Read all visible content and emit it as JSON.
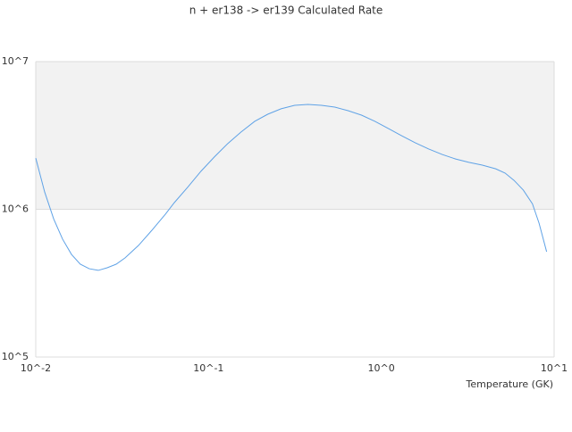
{
  "chart_data": {
    "type": "line",
    "title": "n + er138 -> er139 Calculated Rate",
    "x_label": "Temperature (GK)",
    "x": [
      0.01,
      0.01126,
      0.0127,
      0.0143,
      0.0161,
      0.0181,
      0.0204,
      0.023,
      0.0259,
      0.0292,
      0.0329,
      0.0393,
      0.047,
      0.0563,
      0.0634,
      0.0757,
      0.0904,
      0.108,
      0.129,
      0.154,
      0.185,
      0.22,
      0.263,
      0.315,
      0.376,
      0.45,
      0.538,
      0.642,
      0.768,
      0.918,
      1.1,
      1.31,
      1.57,
      1.88,
      2.25,
      2.69,
      3.21,
      3.84,
      4.59,
      5.2,
      5.86,
      6.63,
      7.49,
      8.18,
      9.05
    ],
    "series": [
      {
        "color": "#5fa2e6",
        "values": [
          2220000,
          1310000,
          860000,
          628000,
          495000,
          425000,
          396000,
          386000,
          402000,
          425000,
          469000,
          569000,
          721000,
          927000,
          1110000,
          1410000,
          1810000,
          2260000,
          2780000,
          3330000,
          3940000,
          4400000,
          4790000,
          5060000,
          5130000,
          5060000,
          4920000,
          4650000,
          4340000,
          3940000,
          3520000,
          3150000,
          2820000,
          2560000,
          2350000,
          2190000,
          2080000,
          1990000,
          1880000,
          1760000,
          1570000,
          1350000,
          1090000,
          806000,
          516000
        ]
      }
    ],
    "xscale": "log",
    "yscale": "log",
    "xlim": [
      0.01,
      10
    ],
    "ylim": [
      100000,
      10000000
    ],
    "xticks": [
      {
        "value": 0.01,
        "label": "10^-2"
      },
      {
        "value": 0.1,
        "label": "10^-1"
      },
      {
        "value": 1,
        "label": "10^0"
      },
      {
        "value": 10,
        "label": "10^1"
      }
    ],
    "yticks": [
      {
        "value": 100000,
        "label": "10^5"
      },
      {
        "value": 1000000,
        "label": "10^6"
      },
      {
        "value": 10000000,
        "label": "10^7"
      }
    ],
    "grid": true,
    "alternate_bands": true
  }
}
